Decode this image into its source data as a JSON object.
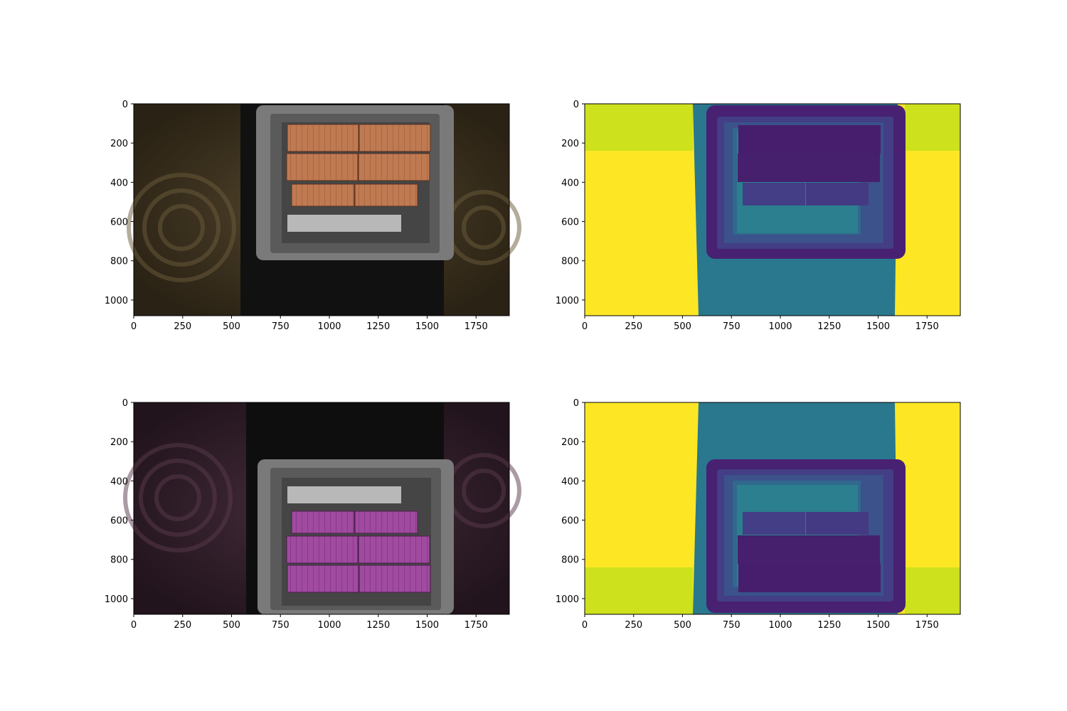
{
  "chart_data": [
    {
      "type": "image",
      "content": "photo",
      "description_tint": "warm brown",
      "xlim": [
        0,
        1920
      ],
      "ylim": [
        1080,
        0
      ],
      "x_ticks": [
        0,
        250,
        500,
        750,
        1000,
        1250,
        1500,
        1750
      ],
      "y_ticks": [
        0,
        200,
        400,
        600,
        800,
        1000
      ],
      "colors": {
        "box": "#c07a52",
        "background": "#3a2f1a",
        "crate": "#8a8a8a"
      }
    },
    {
      "type": "heatmap",
      "content": "segmentation",
      "colormap": "viridis",
      "xlim": [
        0,
        1920
      ],
      "ylim": [
        1080,
        0
      ],
      "x_ticks": [
        0,
        250,
        500,
        750,
        1000,
        1250,
        1500,
        1750
      ],
      "y_ticks": [
        0,
        200,
        400,
        600,
        800,
        1000
      ],
      "colors": {
        "yellow": "#fde725",
        "lime": "#cde11d",
        "teal": "#2a788e",
        "purple": "#482173",
        "indigo": "#443a83",
        "blue": "#31688e"
      }
    },
    {
      "type": "image",
      "content": "photo",
      "description_tint": "magenta",
      "xlim": [
        0,
        1920
      ],
      "ylim": [
        1080,
        0
      ],
      "x_ticks": [
        0,
        250,
        500,
        750,
        1000,
        1250,
        1500,
        1750
      ],
      "y_ticks": [
        0,
        200,
        400,
        600,
        800,
        1000
      ],
      "colors": {
        "box": "#a04aa0",
        "background": "#2a1a24",
        "crate": "#8a8a8a"
      }
    },
    {
      "type": "heatmap",
      "content": "segmentation",
      "colormap": "viridis",
      "xlim": [
        0,
        1920
      ],
      "ylim": [
        1080,
        0
      ],
      "x_ticks": [
        0,
        250,
        500,
        750,
        1000,
        1250,
        1500,
        1750
      ],
      "y_ticks": [
        0,
        200,
        400,
        600,
        800,
        1000
      ],
      "colors": {
        "yellow": "#fde725",
        "lime": "#cde11d",
        "teal": "#2a788e",
        "purple": "#482173",
        "indigo": "#443a83",
        "blue": "#31688e"
      }
    }
  ]
}
